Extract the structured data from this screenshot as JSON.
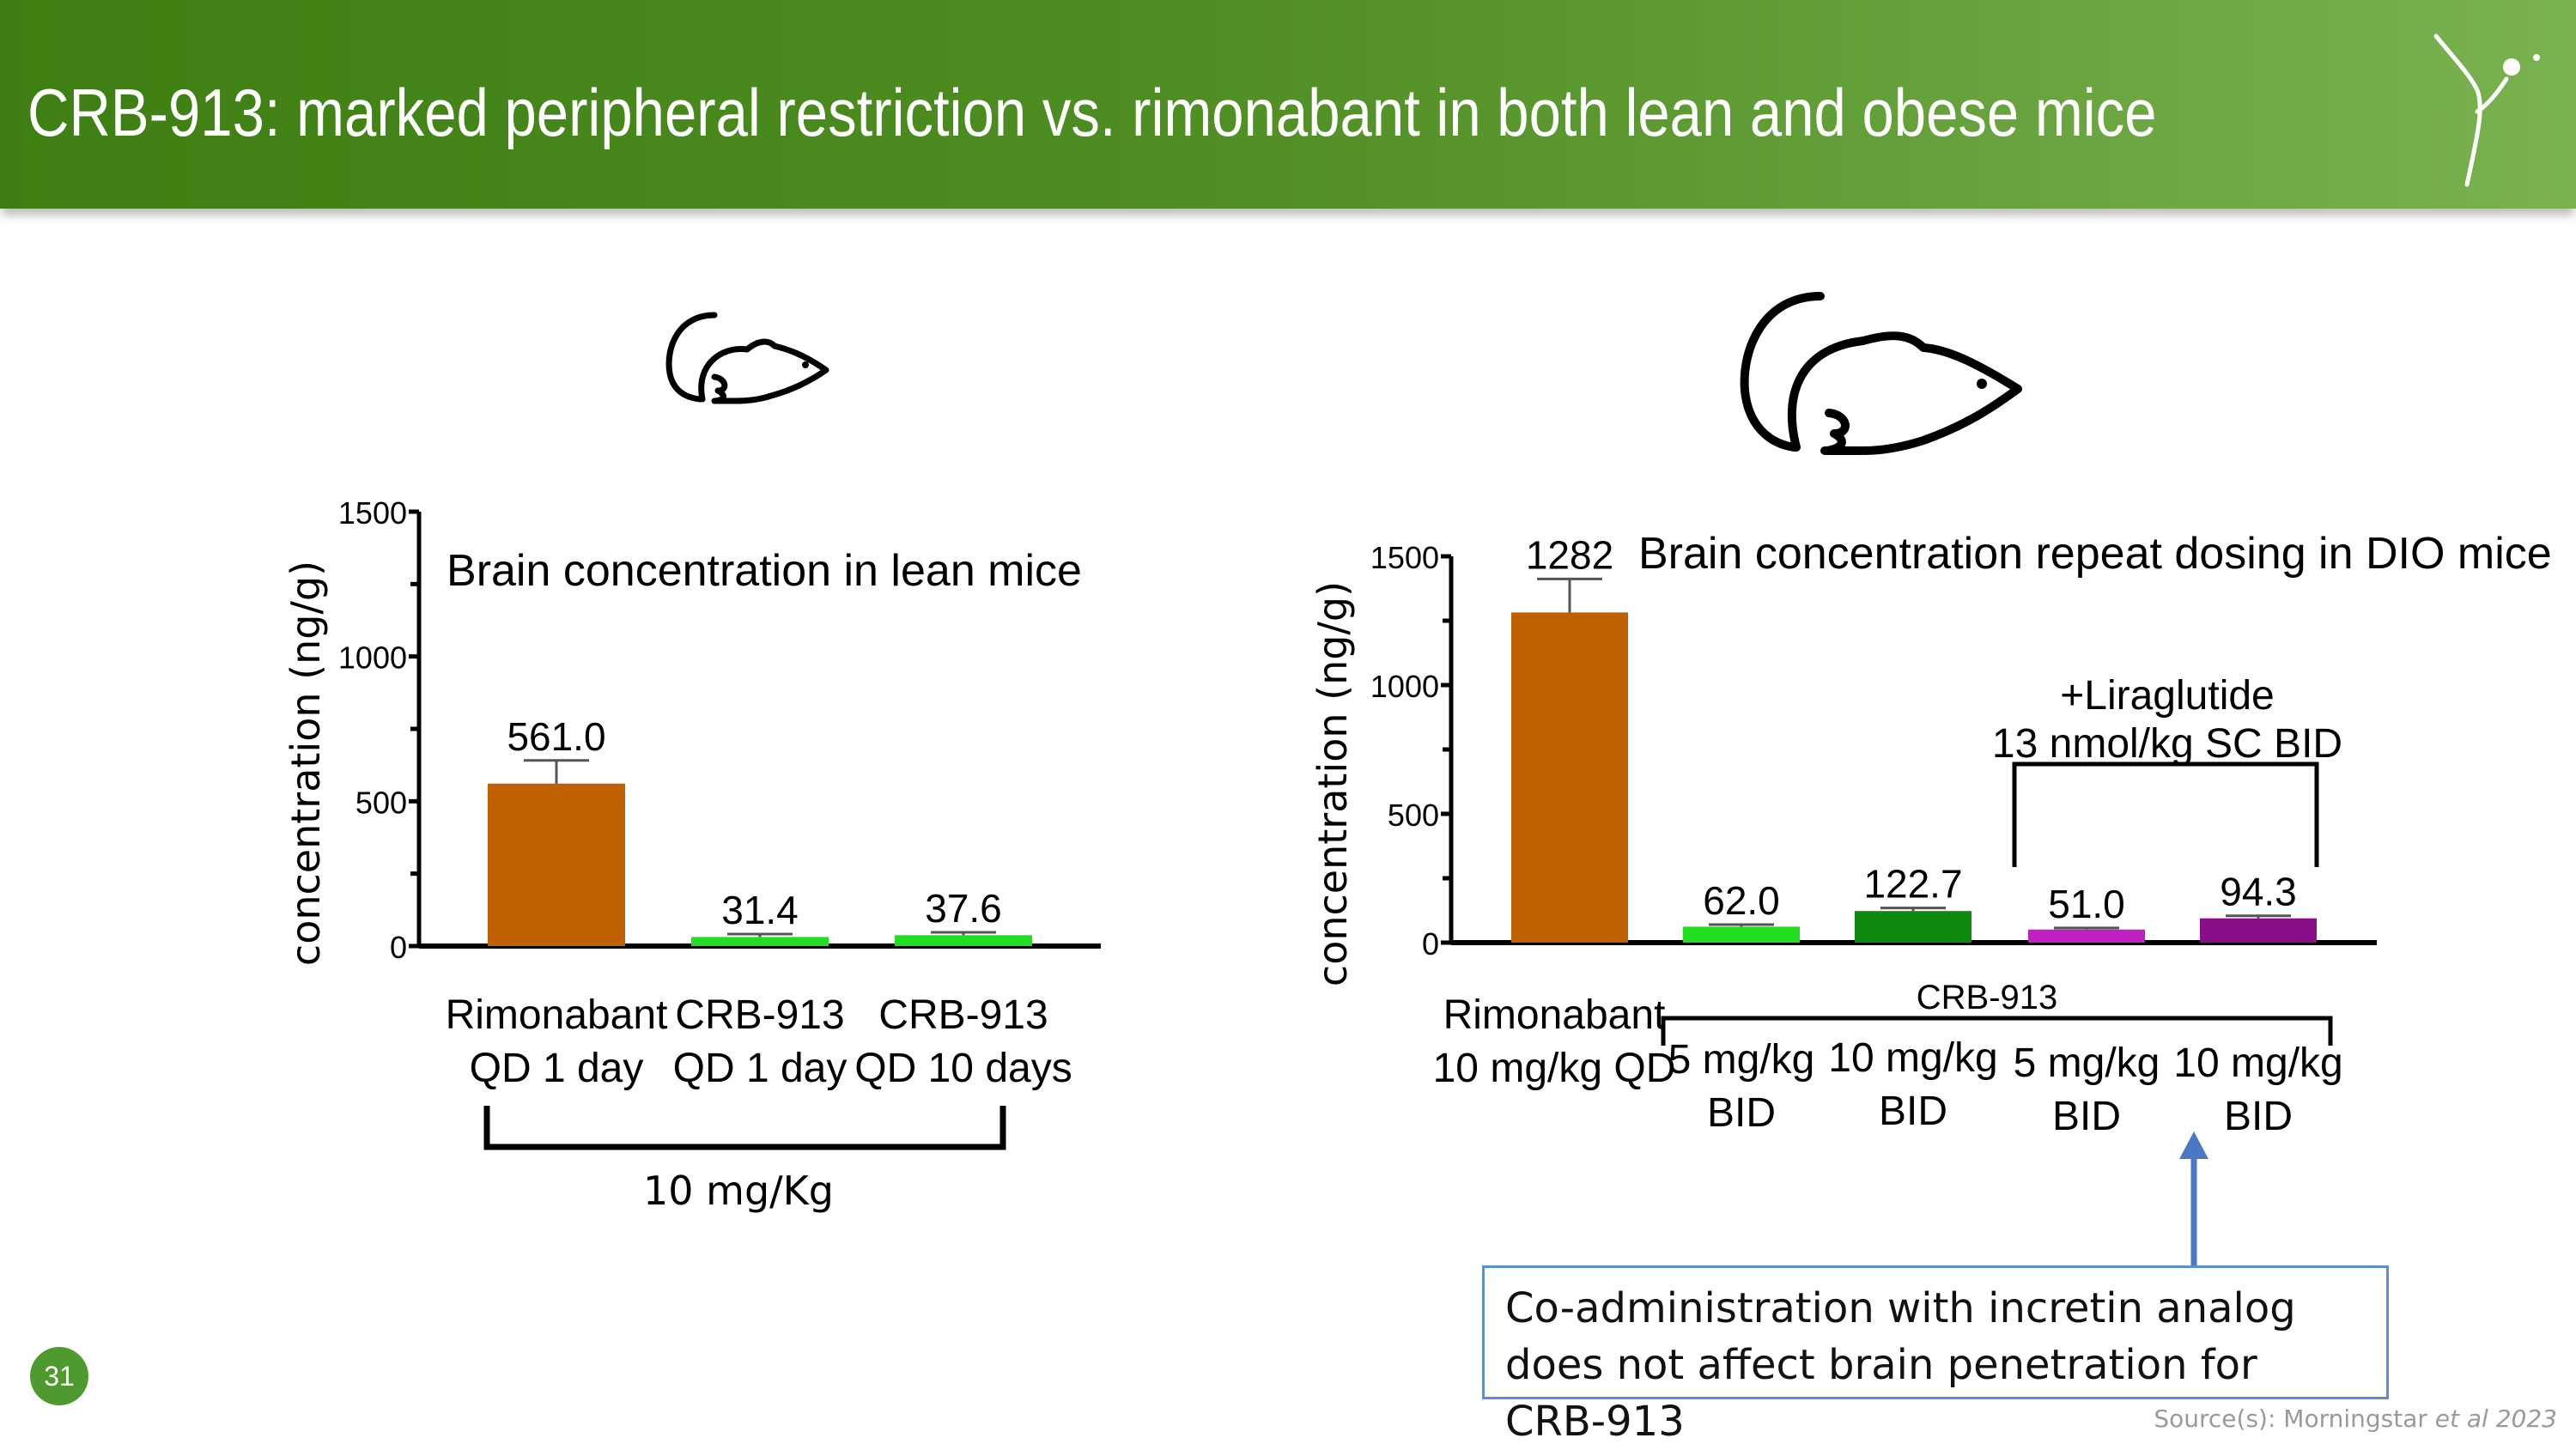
{
  "header": {
    "title": "CRB-913: marked peripheral restriction vs. rimonabant in both lean and obese mice"
  },
  "colors": {
    "header_green": "#3d7f12",
    "rimonabant": "#c06000",
    "crb_light_green": "#22dd22",
    "crb_dark_green": "#0e8a0e",
    "lira_magenta": "#c020c0",
    "lira_purple": "#8a0e8a",
    "callout_border": "#5b8fd0",
    "arrow": "#4a78c4"
  },
  "icons": {
    "lean": "mouse-icon",
    "obese": "fat-mouse-icon",
    "logo": "dancing-figure-logo"
  },
  "chart_data": [
    {
      "type": "bar",
      "title": "Brain concentration in lean mice",
      "ylabel": "concentration (ng/g)",
      "ylim": [
        0,
        1500
      ],
      "yticks": [
        "0",
        "500",
        "1000",
        "1500"
      ],
      "categories": [
        {
          "line1": "Rimonabant",
          "line2": "QD 1 day"
        },
        {
          "line1": "CRB-913",
          "line2": "QD 1 day"
        },
        {
          "line1": "CRB-913",
          "line2": "QD 10 days"
        }
      ],
      "values": [
        561.0,
        31.4,
        37.6
      ],
      "labels": [
        "561.0",
        "31.4",
        "37.6"
      ],
      "errors": [
        80,
        10,
        10
      ],
      "colors": [
        "#c06000",
        "#22dd22",
        "#22dd22"
      ],
      "group_label": "10 mg/Kg"
    },
    {
      "type": "bar",
      "title": "Brain concentration repeat dosing in DIO mice",
      "ylabel": "concentration (ng/g)",
      "ylim": [
        0,
        1500
      ],
      "yticks": [
        "0",
        "500",
        "1000",
        "1500"
      ],
      "categories": [
        {
          "line1": "Rimonabant",
          "line2": "10 mg/kg QD"
        },
        {
          "line1": "5 mg/kg",
          "line2": "BID"
        },
        {
          "line1": "10 mg/kg",
          "line2": "BID"
        },
        {
          "line1": "5 mg/kg",
          "line2": "BID"
        },
        {
          "line1": "10 mg/kg",
          "line2": "BID"
        }
      ],
      "values": [
        1282,
        62.0,
        122.7,
        51.0,
        94.3
      ],
      "labels": [
        "1282",
        "62.0",
        "122.7",
        "51.0",
        "94.3"
      ],
      "errors": [
        130,
        8,
        12,
        6,
        10
      ],
      "colors": [
        "#c06000",
        "#22dd22",
        "#0e8a0e",
        "#c020c0",
        "#8a0e8a"
      ],
      "group_label": "CRB-913",
      "annotation_line1": "+Liraglutide",
      "annotation_line2": "13 nmol/kg SC BID"
    }
  ],
  "callout": {
    "text": "Co-administration with incretin analog does not affect brain penetration for CRB-913"
  },
  "footer": {
    "slide_number": "31",
    "source_prefix": "Source(s): Morningstar ",
    "source_italic": "et al 2023"
  }
}
